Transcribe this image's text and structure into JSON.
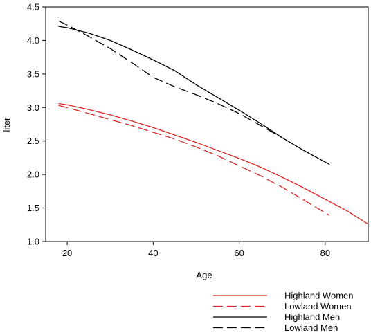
{
  "chart_data": {
    "type": "line",
    "xlabel": "Age",
    "ylabel": "liter",
    "xlim": [
      15,
      90
    ],
    "ylim": [
      1.0,
      4.5
    ],
    "xticks": [
      "20",
      "40",
      "60",
      "80"
    ],
    "xtick_values": [
      20,
      40,
      60,
      80
    ],
    "yticks": [
      "1.0",
      "1.5",
      "2.0",
      "2.5",
      "3.0",
      "3.5",
      "4.0",
      "4.5"
    ],
    "ytick_values": [
      1.0,
      1.5,
      2.0,
      2.5,
      3.0,
      3.5,
      4.0,
      4.5
    ],
    "grid": false,
    "legend_position": "bottom-right, below plot",
    "series": [
      {
        "name": "Highland Women",
        "color": "#d62728",
        "dash": "solid",
        "x": [
          18,
          20,
          25,
          30,
          35,
          40,
          45,
          50,
          55,
          60,
          65,
          70,
          75,
          80,
          85,
          90
        ],
        "y": [
          3.06,
          3.04,
          2.97,
          2.89,
          2.8,
          2.7,
          2.59,
          2.48,
          2.36,
          2.24,
          2.11,
          1.96,
          1.8,
          1.63,
          1.46,
          1.26
        ]
      },
      {
        "name": "Lowland Women",
        "color": "#d62728",
        "dash": "dashed",
        "x": [
          18,
          20,
          25,
          30,
          35,
          40,
          45,
          50,
          55,
          60,
          65,
          70,
          75,
          81
        ],
        "y": [
          3.03,
          3.0,
          2.91,
          2.82,
          2.73,
          2.63,
          2.53,
          2.41,
          2.28,
          2.13,
          1.98,
          1.81,
          1.62,
          1.39
        ]
      },
      {
        "name": "Highland Men",
        "color": "#000000",
        "dash": "solid",
        "x": [
          18,
          20,
          25,
          30,
          35,
          40,
          45,
          50,
          55,
          60,
          65,
          70,
          75,
          81
        ],
        "y": [
          4.21,
          4.19,
          4.11,
          4.0,
          3.86,
          3.71,
          3.55,
          3.34,
          3.15,
          2.96,
          2.76,
          2.55,
          2.36,
          2.15
        ]
      },
      {
        "name": "Lowland Men",
        "color": "#000000",
        "dash": "dashed",
        "x": [
          18,
          20,
          25,
          30,
          35,
          40,
          45,
          50,
          55,
          60,
          65,
          70
        ],
        "y": [
          4.29,
          4.23,
          4.06,
          3.88,
          3.67,
          3.45,
          3.31,
          3.19,
          3.06,
          2.91,
          2.73,
          2.55
        ]
      }
    ]
  }
}
